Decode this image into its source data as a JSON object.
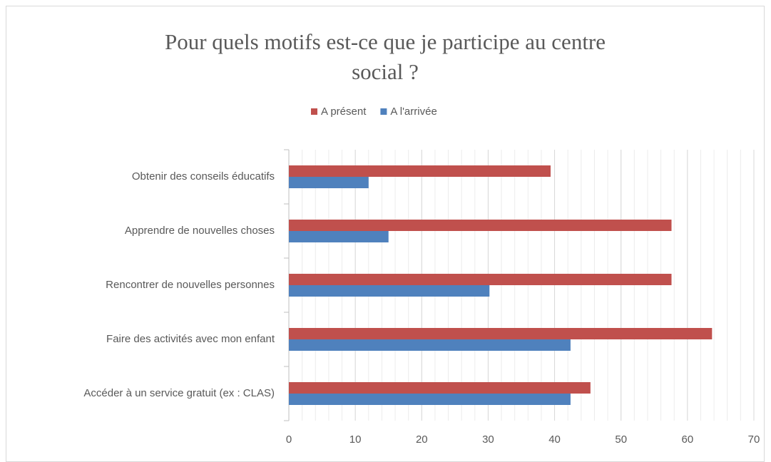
{
  "chart_data": {
    "type": "hbar",
    "title": "Pour quels motifs est-ce que je participe au centre social ?",
    "categories": [
      "Obtenir des conseils éducatifs",
      "Apprendre de nouvelles choses",
      "Rencontrer de nouvelles personnes",
      "Faire des activités avec mon enfant",
      "Accéder à un service gratuit (ex : CLAS)"
    ],
    "series": [
      {
        "name": "A présent",
        "color": "#c0504d",
        "values": [
          39.4,
          57.6,
          57.6,
          63.7,
          45.4
        ]
      },
      {
        "name": "A l'arrivée",
        "color": "#4f81bd",
        "values": [
          12.0,
          15.0,
          30.2,
          42.4,
          42.4
        ]
      }
    ],
    "xlim": [
      0,
      70
    ],
    "xticks": [
      0,
      10,
      20,
      30,
      40,
      50,
      60,
      70
    ],
    "grid": true,
    "minor_grid_step": 2,
    "legend": "top"
  }
}
